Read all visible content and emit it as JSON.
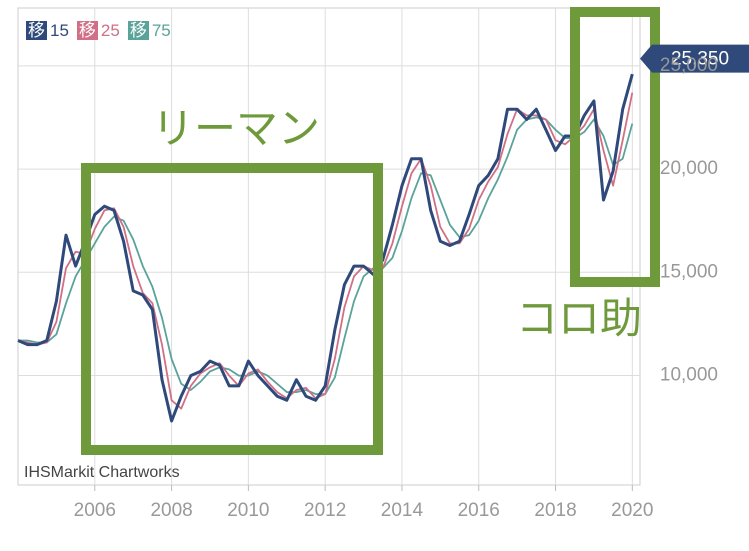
{
  "chart_data": {
    "type": "line",
    "x": [
      2004,
      2004.25,
      2004.5,
      2004.75,
      2005,
      2005.25,
      2005.5,
      2005.75,
      2006,
      2006.25,
      2006.5,
      2006.75,
      2007,
      2007.25,
      2007.5,
      2007.75,
      2008,
      2008.25,
      2008.5,
      2008.75,
      2009,
      2009.25,
      2009.5,
      2009.75,
      2010,
      2010.25,
      2010.5,
      2010.75,
      2011,
      2011.25,
      2011.5,
      2011.75,
      2012,
      2012.25,
      2012.5,
      2012.75,
      2013,
      2013.25,
      2013.5,
      2013.75,
      2014,
      2014.25,
      2014.5,
      2014.75,
      2015,
      2015.25,
      2015.5,
      2015.75,
      2016,
      2016.25,
      2016.5,
      2016.75,
      2017,
      2017.25,
      2017.5,
      2017.75,
      2018,
      2018.25,
      2018.5,
      2018.75,
      2019,
      2019.25,
      2019.5,
      2019.75,
      2020
    ],
    "series": [
      {
        "name": "移15",
        "color": "#2f4a7a",
        "values": [
          11700,
          11500,
          11500,
          11700,
          13600,
          16800,
          15300,
          16500,
          17800,
          18200,
          18000,
          16500,
          14100,
          13900,
          13200,
          9800,
          7800,
          9000,
          10000,
          10200,
          10700,
          10500,
          9500,
          9500,
          10700,
          10000,
          9500,
          9000,
          8800,
          9800,
          9000,
          8800,
          9500,
          12200,
          14400,
          15300,
          15300,
          14900,
          15600,
          17300,
          19200,
          20500,
          20500,
          18000,
          16500,
          16300,
          16500,
          17800,
          19200,
          19700,
          20500,
          22900,
          22900,
          22400,
          22900,
          21900,
          20900,
          21600,
          21600,
          22600,
          23300,
          18500,
          19900,
          22900,
          24600
        ]
      },
      {
        "name": "移25",
        "color": "#d06f86",
        "values": [
          11700,
          11600,
          11500,
          11600,
          12600,
          15200,
          16000,
          15900,
          17100,
          18000,
          18100,
          17200,
          15300,
          14000,
          13500,
          11500,
          8800,
          8400,
          9500,
          10100,
          10400,
          10600,
          10000,
          9500,
          10100,
          10300,
          9700,
          9200,
          8900,
          9300,
          9400,
          8900,
          9100,
          10800,
          13300,
          14800,
          15300,
          15100,
          15200,
          16400,
          18200,
          19800,
          20500,
          19200,
          17200,
          16400,
          16400,
          17100,
          18500,
          19400,
          20100,
          21700,
          22900,
          22600,
          22600,
          22400,
          21400,
          21200,
          21600,
          22100,
          22900,
          20900,
          19200,
          21400,
          23700
        ]
      },
      {
        "name": "移75",
        "color": "#5aa39a",
        "values": [
          11700,
          11700,
          11600,
          11600,
          12000,
          13500,
          14800,
          15600,
          16400,
          17200,
          17700,
          17500,
          16600,
          15300,
          14300,
          12800,
          10800,
          9600,
          9300,
          9700,
          10200,
          10400,
          10300,
          10000,
          10000,
          10200,
          10000,
          9600,
          9200,
          9200,
          9300,
          9100,
          9100,
          9900,
          11800,
          13600,
          14800,
          15200,
          15200,
          15700,
          17000,
          18600,
          19800,
          19700,
          18500,
          17300,
          16700,
          16800,
          17500,
          18600,
          19500,
          20600,
          21900,
          22400,
          22500,
          22400,
          21900,
          21500,
          21500,
          21800,
          22400,
          21600,
          20200,
          20500,
          22200
        ]
      }
    ],
    "xlim": [
      2004,
      2020.2
    ],
    "xticks": [
      2006,
      2008,
      2010,
      2012,
      2014,
      2016,
      2018,
      2020
    ],
    "ylim": [
      4700,
      27800
    ],
    "yticks": [
      {
        "value": 10000,
        "label": "10,000"
      },
      {
        "value": 15000,
        "label": "15,000"
      },
      {
        "value": 20000,
        "label": "20,000"
      },
      {
        "value": 25000,
        "label": "25,000"
      }
    ],
    "grid": true,
    "current_price": 25350,
    "current_price_label": "25,350",
    "source": "IHSMarkit Chartworks",
    "annotations": [
      "リーマン",
      "コロ助"
    ]
  }
}
